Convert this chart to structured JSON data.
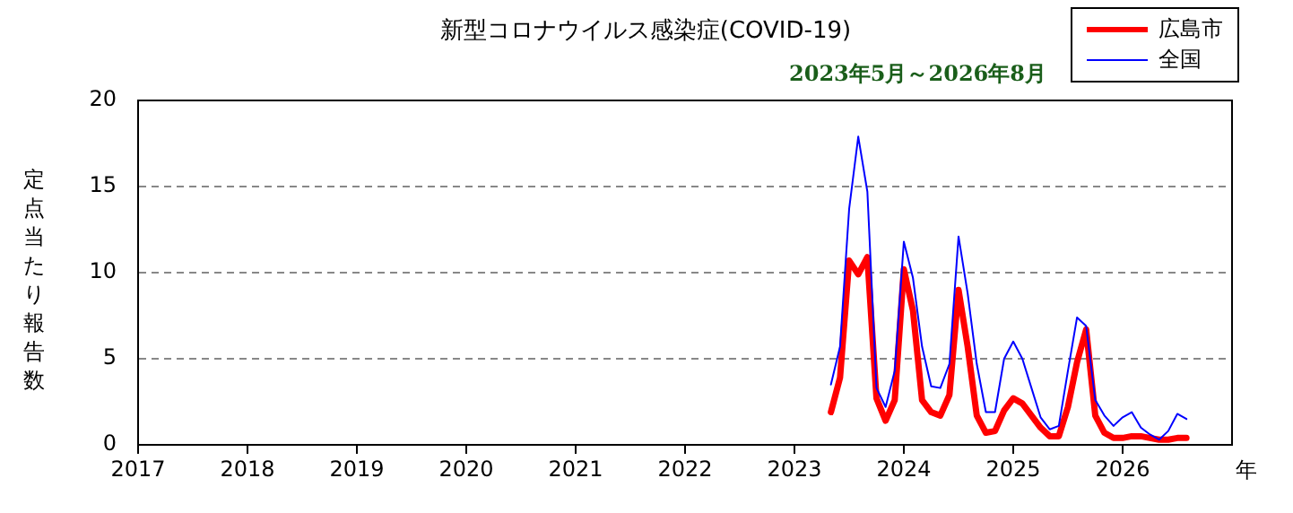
{
  "chart_data": {
    "type": "line",
    "title": "新型コロナウイルス感染症(COVID-19)",
    "subtitle": "2023年5月～2026年8月",
    "xlabel": "年",
    "ylabel": "定点当たり報告数",
    "x": [
      "2023-05",
      "2023-06",
      "2023-07",
      "2023-08",
      "2023-09",
      "2023-10",
      "2023-11",
      "2023-12",
      "2024-01",
      "2024-02",
      "2024-03",
      "2024-04",
      "2024-05",
      "2024-06",
      "2024-07",
      "2024-08",
      "2024-09",
      "2024-10",
      "2024-11",
      "2024-12",
      "2025-01",
      "2025-02",
      "2025-03",
      "2025-04",
      "2025-05",
      "2025-06",
      "2025-07",
      "2025-08",
      "2025-09",
      "2025-10",
      "2025-11",
      "2025-12",
      "2026-01",
      "2026-02",
      "2026-03",
      "2026-04",
      "2026-05",
      "2026-06",
      "2026-07",
      "2026-08"
    ],
    "series": [
      {
        "name": "広島市",
        "color": "#ff0000",
        "values": [
          1.9,
          3.9,
          10.7,
          9.9,
          10.9,
          2.7,
          1.4,
          2.6,
          10.2,
          7.8,
          2.6,
          1.9,
          1.7,
          2.9,
          9.0,
          5.7,
          1.7,
          0.7,
          0.8,
          2.0,
          2.7,
          2.4,
          1.7,
          1.0,
          0.5,
          0.5,
          2.2,
          4.8,
          6.7,
          1.7,
          0.7,
          0.4,
          0.4,
          0.5,
          0.5,
          0.4,
          0.3,
          0.3,
          0.4,
          0.4
        ]
      },
      {
        "name": "全国",
        "color": "#0000ff",
        "values": [
          3.5,
          5.7,
          13.7,
          17.9,
          14.7,
          3.3,
          2.2,
          4.3,
          11.8,
          9.7,
          5.7,
          3.4,
          3.3,
          4.7,
          12.1,
          8.8,
          4.7,
          1.9,
          1.9,
          5.0,
          6.0,
          5.0,
          3.3,
          1.6,
          0.9,
          1.1,
          4.3,
          7.4,
          6.9,
          2.6,
          1.7,
          1.1,
          1.6,
          1.9,
          1.0,
          0.6,
          0.3,
          0.8,
          1.8,
          1.5
        ]
      }
    ],
    "xlim": [
      "2017",
      "2027"
    ],
    "xticks": [
      "2017",
      "2018",
      "2019",
      "2020",
      "2021",
      "2022",
      "2023",
      "2024",
      "2025",
      "2026"
    ],
    "ylim": [
      0,
      20
    ],
    "yticks": [
      0,
      5,
      10,
      15,
      20
    ],
    "grid": "y",
    "legend": "top right",
    "marker": "none",
    "line_style": "solid"
  }
}
